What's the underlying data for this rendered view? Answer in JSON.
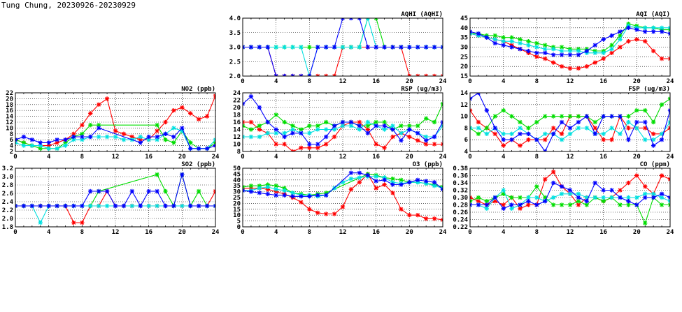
{
  "page": {
    "title": "Tung Chung, 20230926-20230929"
  },
  "series_colors": [
    "#ff0000",
    "#00dd00",
    "#00e0e0",
    "#0000ff"
  ],
  "chart_data": [
    {
      "id": "aqhi",
      "type": "line",
      "title": "AQHI (AQHI)",
      "ylim": [
        2.0,
        4.0
      ],
      "yticks": [
        "2.0",
        "2.5",
        "3.0",
        "3.5",
        "4.0"
      ],
      "xlim": [
        0,
        24
      ],
      "xticks": [
        "0",
        "4",
        "8",
        "12",
        "16",
        "20",
        "24"
      ],
      "grid": true,
      "series": [
        {
          "color": "#ff0000",
          "values": [
            3,
            3,
            3,
            3,
            2,
            2,
            2,
            2,
            2,
            2,
            2,
            2,
            3,
            3,
            3,
            3,
            3,
            3,
            3,
            3,
            2,
            2,
            2,
            2,
            2
          ]
        },
        {
          "color": "#00dd00",
          "values": [
            3,
            3,
            3,
            3,
            3,
            3,
            3,
            3,
            3,
            3,
            3,
            3,
            3,
            3,
            3,
            4,
            4,
            3,
            3,
            3,
            3,
            3,
            3,
            3,
            3
          ]
        },
        {
          "color": "#00e0e0",
          "values": [
            3,
            3,
            3,
            3,
            3,
            3,
            3,
            3,
            2,
            3,
            3,
            3,
            3,
            3,
            3,
            4,
            3,
            3,
            3,
            3,
            3,
            3,
            3,
            3,
            3
          ]
        },
        {
          "color": "#0000ff",
          "values": [
            3,
            3,
            3,
            3,
            2,
            2,
            2,
            2,
            2,
            3,
            3,
            3,
            4,
            4,
            4,
            3,
            3,
            3,
            3,
            3,
            3,
            3,
            3,
            3,
            3
          ]
        }
      ]
    },
    {
      "id": "aqi",
      "type": "line",
      "title": "AQI (AQI)",
      "ylim": [
        15,
        45
      ],
      "yticks": [
        "15",
        "20",
        "25",
        "30",
        "35",
        "40",
        "45"
      ],
      "xlim": [
        0,
        24
      ],
      "xticks": [
        "0",
        "4",
        "8",
        "12",
        "16",
        "20",
        "24"
      ],
      "grid": true,
      "series": [
        {
          "color": "#ff0000",
          "values": [
            37,
            36,
            35,
            34,
            33,
            31,
            29,
            27,
            25,
            24,
            22,
            20,
            19,
            19,
            20,
            22,
            24,
            27,
            30,
            33,
            34,
            33,
            28,
            24,
            24
          ]
        },
        {
          "color": "#00dd00",
          "values": [
            37,
            37,
            36,
            36,
            35,
            35,
            34,
            33,
            32,
            31,
            30,
            30,
            29,
            29,
            29,
            28,
            28,
            31,
            36,
            42,
            41,
            40,
            40,
            39,
            39
          ]
        },
        {
          "color": "#00e0e0",
          "values": [
            37,
            36,
            35,
            34,
            33,
            33,
            32,
            31,
            30,
            29,
            29,
            28,
            28,
            28,
            27,
            27,
            27,
            29,
            34,
            41,
            40,
            40,
            40,
            40,
            40
          ]
        },
        {
          "color": "#0000ff",
          "values": [
            38,
            37,
            35,
            32,
            31,
            30,
            29,
            28,
            27,
            27,
            26,
            26,
            26,
            26,
            28,
            31,
            34,
            36,
            38,
            40,
            39,
            38,
            38,
            38,
            37
          ]
        }
      ]
    },
    {
      "id": "no2",
      "type": "line",
      "title": "NO2 (ppb)",
      "ylim": [
        2,
        22
      ],
      "yticks": [
        "2",
        "4",
        "6",
        "8",
        "10",
        "12",
        "14",
        "16",
        "18",
        "20",
        "22"
      ],
      "xlim": [
        0,
        24
      ],
      "xticks": [
        "0",
        "4",
        "8",
        "12",
        "16",
        "20",
        "24"
      ],
      "grid": true,
      "series": [
        {
          "color": "#ff0000",
          "values": [
            6,
            5,
            4,
            4,
            4,
            5,
            6,
            8,
            11,
            15,
            18,
            20,
            9,
            8,
            7,
            6,
            6,
            9,
            12,
            16,
            17,
            15,
            13,
            14,
            21
          ]
        },
        {
          "color": "#00dd00",
          "values": [
            6,
            5,
            4,
            3,
            3,
            3,
            5,
            7,
            8,
            11,
            11,
            null,
            null,
            null,
            null,
            null,
            null,
            11,
            6,
            5,
            9,
            5,
            3,
            3,
            5
          ]
        },
        {
          "color": "#00e0e0",
          "values": [
            5,
            4,
            4,
            4,
            3,
            3,
            4,
            6,
            6,
            7,
            7,
            7,
            7,
            6,
            6,
            7,
            6,
            6,
            8,
            10,
            9,
            3,
            3,
            3,
            6
          ]
        },
        {
          "color": "#0000ff",
          "values": [
            6,
            7,
            6,
            5,
            5,
            6,
            6,
            7,
            7,
            7,
            10,
            null,
            null,
            null,
            null,
            5,
            7,
            7,
            8,
            7,
            10,
            3,
            3,
            3,
            4
          ]
        }
      ]
    },
    {
      "id": "rsp",
      "type": "line",
      "title": "RSP (ug/m3)",
      "ylim": [
        8,
        24
      ],
      "yticks": [
        "8",
        "10",
        "12",
        "14",
        "16",
        "18",
        "20",
        "22",
        "24"
      ],
      "xlim": [
        0,
        24
      ],
      "xticks": [
        "0",
        "4",
        "8",
        "12",
        "16",
        "20",
        "24"
      ],
      "grid": true,
      "series": [
        {
          "color": "#ff0000",
          "values": [
            16,
            16,
            14,
            13,
            10,
            10,
            8,
            9,
            9,
            9,
            10,
            12,
            15,
            16,
            16,
            14,
            10,
            9,
            12,
            13,
            12,
            11,
            10,
            10,
            10
          ]
        },
        {
          "color": "#00dd00",
          "values": [
            15,
            14,
            15,
            16,
            18,
            16,
            15,
            14,
            15,
            15,
            16,
            15,
            16,
            16,
            15,
            15,
            16,
            16,
            14,
            15,
            15,
            15,
            17,
            16,
            21
          ]
        },
        {
          "color": "#00e0e0",
          "values": [
            12,
            12,
            12,
            13,
            13,
            13,
            14,
            13,
            13,
            14,
            14,
            14,
            15,
            15,
            14,
            16,
            15,
            14,
            15,
            13,
            14,
            13,
            12,
            12,
            15
          ]
        },
        {
          "color": "#0000ff",
          "values": [
            21,
            23,
            20,
            16,
            14,
            12,
            13,
            13,
            10,
            10,
            12,
            15,
            16,
            16,
            15,
            13,
            15,
            15,
            14,
            11,
            14,
            13,
            11,
            12,
            16
          ]
        }
      ]
    },
    {
      "id": "fsp",
      "type": "line",
      "title": "FSP (ug/m3)",
      "ylim": [
        4,
        14
      ],
      "yticks": [
        "4",
        "6",
        "8",
        "10",
        "12",
        "14"
      ],
      "xlim": [
        0,
        24
      ],
      "xticks": [
        "0",
        "4",
        "8",
        "12",
        "16",
        "20",
        "24"
      ],
      "grid": true,
      "series": [
        {
          "color": "#ff0000",
          "values": [
            11,
            9,
            8,
            7,
            5,
            6,
            5,
            6,
            6,
            6,
            8,
            7,
            10,
            10,
            10,
            8,
            6,
            6,
            10,
            8,
            8,
            8,
            7,
            7,
            8
          ]
        },
        {
          "color": "#00dd00",
          "values": [
            8,
            7,
            8,
            10,
            11,
            10,
            9,
            8,
            9,
            10,
            10,
            10,
            10,
            10,
            10,
            9,
            10,
            10,
            10,
            10,
            11,
            11,
            9,
            12,
            13
          ]
        },
        {
          "color": "#00e0e0",
          "values": [
            8,
            8,
            7,
            8,
            7,
            7,
            8,
            7,
            6,
            7,
            7,
            6,
            7,
            8,
            8,
            7,
            7,
            8,
            7,
            9,
            8,
            6,
            6,
            7,
            9
          ]
        },
        {
          "color": "#0000ff",
          "values": [
            13,
            14,
            11,
            8,
            6,
            6,
            7,
            7,
            6,
            4,
            7,
            9,
            8,
            9,
            10,
            7,
            10,
            10,
            10,
            6,
            9,
            9,
            5,
            6,
            11
          ]
        }
      ]
    },
    {
      "id": "so2",
      "type": "line",
      "title": "SO2 (ppb)",
      "ylim": [
        1.8,
        3.2
      ],
      "yticks": [
        "1.8",
        "2.0",
        "2.2",
        "2.4",
        "2.6",
        "2.8",
        "3.0",
        "3.2"
      ],
      "xlim": [
        0,
        24
      ],
      "xticks": [
        "0",
        "4",
        "8",
        "12",
        "16",
        "20",
        "24"
      ],
      "grid": true,
      "series": [
        {
          "color": "#ff0000",
          "values": [
            2.3,
            2.3,
            2.3,
            2.3,
            2.3,
            2.3,
            2.3,
            1.9,
            1.9,
            2.3,
            2.3,
            2.65,
            2.3,
            2.3,
            2.3,
            2.3,
            2.3,
            2.3,
            2.3,
            2.3,
            2.3,
            2.3,
            2.3,
            2.3,
            2.65
          ]
        },
        {
          "color": "#00dd00",
          "values": [
            2.3,
            2.3,
            2.3,
            2.3,
            2.3,
            2.3,
            2.3,
            2.3,
            2.3,
            2.3,
            2.65,
            null,
            null,
            null,
            null,
            null,
            null,
            3.05,
            2.65,
            2.3,
            3.05,
            2.3,
            2.65,
            2.3,
            2.3
          ]
        },
        {
          "color": "#00e0e0",
          "values": [
            2.3,
            2.3,
            2.3,
            1.9,
            2.3,
            2.3,
            2.3,
            2.3,
            2.3,
            2.3,
            2.3,
            2.3,
            2.3,
            2.3,
            2.3,
            2.3,
            2.3,
            2.3,
            2.3,
            2.3,
            2.3,
            2.3,
            2.3,
            2.3,
            2.3
          ]
        },
        {
          "color": "#0000ff",
          "values": [
            2.3,
            2.3,
            2.3,
            2.3,
            2.3,
            2.3,
            2.3,
            2.3,
            2.3,
            2.65,
            2.65,
            2.65,
            2.3,
            2.3,
            2.65,
            2.3,
            2.65,
            2.65,
            2.3,
            2.3,
            3.05,
            2.3,
            2.3,
            2.3,
            2.3
          ]
        }
      ]
    },
    {
      "id": "o3",
      "type": "line",
      "title": "O3 (ppb)",
      "ylim": [
        0,
        50
      ],
      "yticks": [
        "0",
        "5",
        "10",
        "15",
        "20",
        "25",
        "30",
        "35",
        "40",
        "45",
        "50"
      ],
      "xlim": [
        0,
        24
      ],
      "xticks": [
        "0",
        "4",
        "8",
        "12",
        "16",
        "20",
        "24"
      ],
      "grid": true,
      "series": [
        {
          "color": "#ff0000",
          "values": [
            33,
            33,
            33,
            32,
            30,
            28,
            25,
            21,
            15,
            12,
            11,
            11,
            17,
            32,
            38,
            45,
            33,
            36,
            29,
            15,
            10,
            10,
            7,
            7,
            6
          ]
        },
        {
          "color": "#00dd00",
          "values": [
            34,
            35,
            35,
            36,
            35,
            33,
            29,
            28,
            27,
            28,
            29,
            null,
            null,
            null,
            null,
            45,
            44,
            42,
            41,
            40,
            38,
            38,
            37,
            36,
            34
          ]
        },
        {
          "color": "#00e0e0",
          "values": [
            31,
            31,
            33,
            34,
            32,
            31,
            29,
            27,
            27,
            26,
            27,
            33,
            38,
            41,
            42,
            43,
            43,
            42,
            38,
            37,
            38,
            38,
            37,
            35,
            33
          ]
        },
        {
          "color": "#0000ff",
          "values": [
            31,
            30,
            29,
            28,
            27,
            27,
            26,
            26,
            26,
            27,
            27,
            null,
            null,
            46,
            46,
            44,
            39,
            40,
            36,
            36,
            38,
            40,
            39,
            38,
            32
          ]
        }
      ]
    },
    {
      "id": "co",
      "type": "line",
      "title": "CO (ppm)",
      "ylim": [
        0.22,
        0.38
      ],
      "yticks": [
        "0.22",
        "0.24",
        "0.26",
        "0.28",
        "0.30",
        "0.32",
        "0.34",
        "0.36",
        "0.38"
      ],
      "xlim": [
        0,
        24
      ],
      "xticks": [
        "0",
        "4",
        "8",
        "12",
        "16",
        "20",
        "24"
      ],
      "grid": true,
      "series": [
        {
          "color": "#ff0000",
          "values": [
            0.3,
            0.29,
            0.28,
            0.29,
            0.28,
            0.3,
            0.27,
            0.28,
            0.28,
            0.35,
            0.37,
            0.33,
            0.31,
            0.28,
            0.3,
            0.3,
            0.29,
            0.3,
            0.32,
            0.34,
            0.36,
            0.33,
            0.31,
            0.36,
            0.35
          ]
        },
        {
          "color": "#00dd00",
          "values": [
            0.29,
            0.3,
            0.29,
            0.3,
            0.31,
            0.3,
            0.3,
            0.3,
            0.33,
            0.3,
            0.28,
            0.28,
            0.28,
            0.29,
            0.28,
            0.3,
            0.29,
            0.3,
            0.28,
            0.28,
            0.28,
            0.23,
            0.3,
            0.28,
            0.28
          ]
        },
        {
          "color": "#00e0e0",
          "values": [
            0.28,
            0.28,
            0.27,
            0.3,
            0.32,
            0.27,
            0.28,
            0.3,
            0.3,
            0.29,
            0.3,
            0.31,
            0.31,
            0.31,
            0.3,
            0.3,
            0.3,
            0.3,
            0.3,
            0.3,
            0.3,
            0.31,
            0.31,
            0.3,
            0.29
          ]
        },
        {
          "color": "#0000ff",
          "values": [
            0.28,
            0.28,
            0.28,
            0.3,
            0.27,
            0.28,
            0.28,
            0.29,
            0.28,
            0.29,
            0.34,
            0.33,
            0.32,
            0.3,
            0.29,
            0.34,
            0.32,
            0.32,
            0.3,
            0.29,
            0.28,
            0.3,
            0.3,
            0.31,
            0.3
          ]
        }
      ]
    }
  ]
}
